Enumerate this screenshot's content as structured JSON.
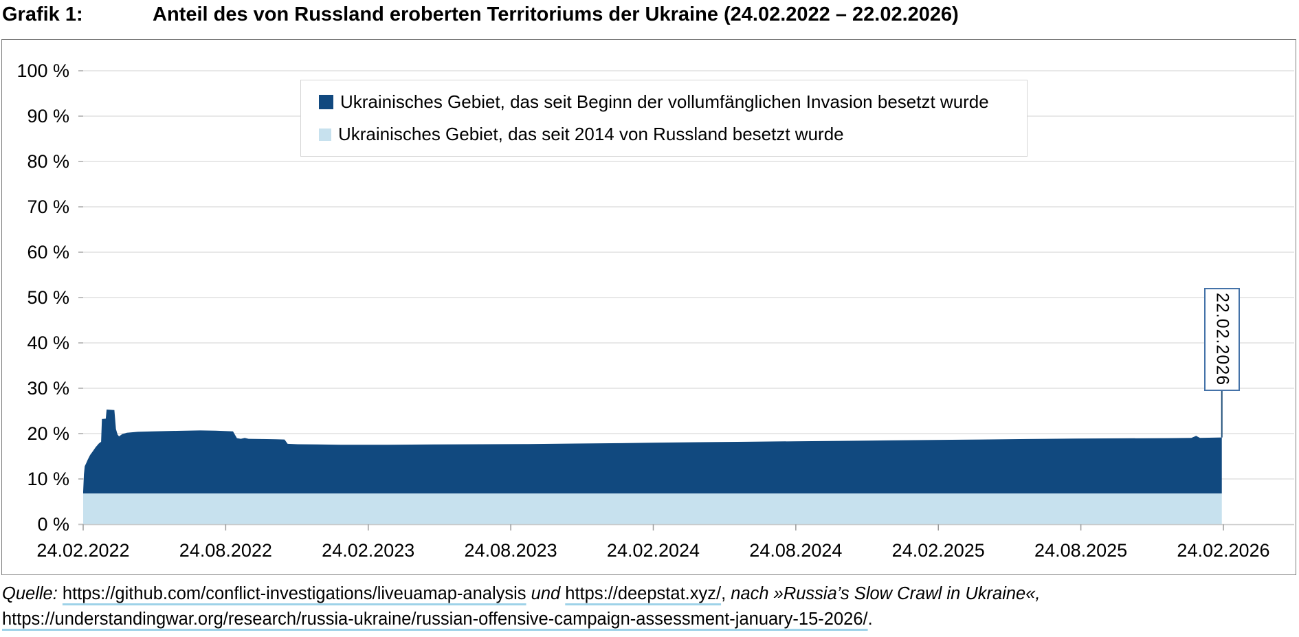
{
  "header": {
    "label": "Grafik 1:",
    "title": "Anteil des von Russland eroberten Territoriums der Ukraine (24.02.2022 – 22.02.2026)"
  },
  "legend": {
    "items": [
      {
        "label": "Ukrainisches Gebiet, das seit Beginn der vollumfänglichen Invasion besetzt wurde",
        "color": "#11497f"
      },
      {
        "label": "Ukrainisches Gebiet, das seit 2014 von Russland besetzt wurde",
        "color": "#c7e1ee"
      }
    ]
  },
  "annotation": {
    "label": "22.02.2026",
    "border_color": "#4472a8",
    "line_color": "#1f4e79"
  },
  "source": {
    "prefix": "Quelle:",
    "link_github": "https://github.com/conflict-investigations/liveuamap-analysis",
    "conjunction": "und",
    "link_deepstat": "https://deepstat.xyz/",
    "separator": ",",
    "reference": "nach »Russia’s Slow Crawl in Ukraine«,",
    "link_isw": "https://understandingwar.org/research/russia-ukraine/russian-offensive-campaign-assessment-january-15-2026/",
    "terminator": ".",
    "underline_color": "#9ed2e8"
  },
  "chart_data": {
    "type": "area",
    "stacked": true,
    "title": "Anteil des von Russland eroberten Territoriums der Ukraine (24.02.2022 – 22.02.2026)",
    "grid": "horizontal",
    "legend_position": "top-inside",
    "x_axis": {
      "start_date": "24.02.2022",
      "end_date": "24.02.2026",
      "span_days": 1461,
      "tick_labels": [
        "24.02.2022",
        "24.08.2022",
        "24.02.2023",
        "24.08.2023",
        "24.02.2024",
        "24.08.2024",
        "24.02.2025",
        "24.08.2025",
        "24.02.2026"
      ]
    },
    "y_axis": {
      "min": 0,
      "max": 100,
      "unit": "%",
      "tick_labels": [
        "0 %",
        "10 %",
        "20 %",
        "30 %",
        "40 %",
        "50 %",
        "60 %",
        "70 %",
        "80 %",
        "90 %",
        "100 %"
      ]
    },
    "colors": {
      "gridline": "#d9d9d9",
      "axis": "#c8c8c8",
      "tick": "#9a9a9a"
    },
    "series": [
      {
        "name": "Ukrainisches Gebiet, das seit Beginn der vollumfänglichen Invasion besetzt wurde",
        "color": "#11497f",
        "role": "total occupied share of Ukraine (top boundary, % incl. 2014 areas)",
        "points_day_pct": [
          [
            0,
            7.2
          ],
          [
            1,
            11.0
          ],
          [
            2,
            12.8
          ],
          [
            4,
            13.5
          ],
          [
            6,
            14.3
          ],
          [
            9,
            15.3
          ],
          [
            12,
            16.0
          ],
          [
            16,
            17.0
          ],
          [
            20,
            17.8
          ],
          [
            23,
            18.2
          ],
          [
            24,
            23.2
          ],
          [
            29,
            23.3
          ],
          [
            30,
            25.3
          ],
          [
            40,
            25.2
          ],
          [
            42,
            21.0
          ],
          [
            44,
            19.8
          ],
          [
            46,
            19.4
          ],
          [
            50,
            19.9
          ],
          [
            56,
            20.2
          ],
          [
            70,
            20.4
          ],
          [
            90,
            20.5
          ],
          [
            120,
            20.6
          ],
          [
            150,
            20.7
          ],
          [
            170,
            20.65
          ],
          [
            192,
            20.5
          ],
          [
            197,
            19.0
          ],
          [
            202,
            18.85
          ],
          [
            207,
            19.05
          ],
          [
            212,
            18.85
          ],
          [
            228,
            18.8
          ],
          [
            247,
            18.75
          ],
          [
            258,
            18.7
          ],
          [
            262,
            17.75
          ],
          [
            275,
            17.65
          ],
          [
            300,
            17.6
          ],
          [
            330,
            17.55
          ],
          [
            390,
            17.55
          ],
          [
            450,
            17.6
          ],
          [
            510,
            17.65
          ],
          [
            570,
            17.7
          ],
          [
            630,
            17.8
          ],
          [
            690,
            17.9
          ],
          [
            730,
            18.0
          ],
          [
            790,
            18.1
          ],
          [
            850,
            18.2
          ],
          [
            910,
            18.3
          ],
          [
            970,
            18.4
          ],
          [
            1030,
            18.5
          ],
          [
            1090,
            18.6
          ],
          [
            1150,
            18.7
          ],
          [
            1210,
            18.8
          ],
          [
            1270,
            18.9
          ],
          [
            1330,
            18.95
          ],
          [
            1390,
            19.0
          ],
          [
            1420,
            19.05
          ],
          [
            1426,
            19.5
          ],
          [
            1431,
            19.05
          ],
          [
            1459,
            19.15
          ]
        ]
      },
      {
        "name": "Ukrainisches Gebiet, das seit 2014 von Russland besetzt wurde",
        "color": "#c7e1ee",
        "role": "constant baseline since 2014",
        "value_pct": 6.8
      }
    ],
    "annotation": {
      "label": "22.02.2026",
      "at_day": 1459,
      "value_pct": 19.15
    }
  }
}
